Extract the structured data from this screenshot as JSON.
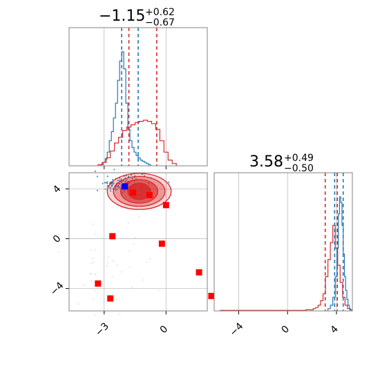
{
  "colors": {
    "posterior_a": "#1f77b4",
    "posterior_b": "#d62728",
    "marker_blue": "#0000ff",
    "marker_red": "#ff0000",
    "grid": "#b0b0b0",
    "axes": "#808080"
  },
  "chart_data": {
    "type": "corner",
    "grid": true,
    "parameters": [
      {
        "title_main": "−1.15",
        "title_sup": "+0.62",
        "title_sub": "−0.67"
      },
      {
        "title_main": "3.58",
        "title_sup": "+0.49",
        "title_sub": "−0.50"
      }
    ],
    "panels": {
      "hist_p0": {
        "type": "histogram",
        "xlim": [
          -4.7,
          2.0
        ],
        "xticks": [
          -3,
          0
        ],
        "show_tick_labels": false,
        "series": [
          {
            "name": "posterior_a",
            "color": "#1f77b4",
            "bin_centers": [
              -3.1,
              -3.0,
              -2.9,
              -2.8,
              -2.7,
              -2.6,
              -2.5,
              -2.4,
              -2.3,
              -2.2,
              -2.1,
              -2.0,
              -1.9,
              -1.8,
              -1.7,
              -1.6,
              -1.5,
              -1.4,
              -1.3,
              -1.2,
              -1.1,
              -1.0,
              -0.9,
              -0.8
            ],
            "counts": [
              0.01,
              0.03,
              0.06,
              0.12,
              0.22,
              0.3,
              0.42,
              0.55,
              0.75,
              0.92,
              1.0,
              0.85,
              0.55,
              0.32,
              0.22,
              0.16,
              0.12,
              0.09,
              0.07,
              0.05,
              0.04,
              0.03,
              0.02,
              0.01
            ],
            "quantiles": [
              -2.15,
              -1.35
            ]
          },
          {
            "name": "posterior_b",
            "color": "#d62728",
            "bin_centers": [
              -3.2,
              -3.0,
              -2.8,
              -2.6,
              -2.4,
              -2.2,
              -2.0,
              -1.8,
              -1.6,
              -1.4,
              -1.2,
              -1.0,
              -0.8,
              -0.6,
              -0.4,
              -0.2,
              0.0,
              0.2,
              0.4
            ],
            "counts": [
              0.01,
              0.03,
              0.07,
              0.13,
              0.2,
              0.25,
              0.31,
              0.34,
              0.36,
              0.38,
              0.39,
              0.4,
              0.39,
              0.37,
              0.32,
              0.22,
              0.12,
              0.05,
              0.02
            ],
            "quantiles": [
              -1.8,
              -0.45
            ]
          }
        ]
      },
      "hist_p1": {
        "type": "histogram",
        "xlim": [
          -6.0,
          5.3
        ],
        "xticks": [
          -4,
          0,
          4
        ],
        "xtick_labels": [
          "−4",
          "0",
          "4"
        ],
        "series": [
          {
            "name": "posterior_b",
            "color": "#d62728",
            "bin_centers": [
              -5.0,
              -4.0,
              -3.0,
              -2.0,
              -1.0,
              0.0,
              1.0,
              2.0,
              2.2,
              2.4,
              2.6,
              2.8,
              3.0,
              3.2,
              3.4,
              3.6,
              3.8,
              4.0,
              4.2,
              4.4,
              4.6,
              4.8,
              5.0
            ],
            "counts": [
              0.005,
              0.005,
              0.005,
              0.005,
              0.005,
              0.005,
              0.005,
              0.01,
              0.02,
              0.03,
              0.05,
              0.09,
              0.15,
              0.3,
              0.45,
              0.6,
              0.75,
              0.55,
              0.4,
              0.25,
              0.12,
              0.05,
              0.02
            ],
            "quantiles": [
              3.08,
              4.07
            ]
          },
          {
            "name": "posterior_a",
            "color": "#1f77b4",
            "bin_centers": [
              3.4,
              3.6,
              3.8,
              4.0,
              4.1,
              4.2,
              4.3,
              4.4,
              4.5,
              4.6,
              4.7,
              4.8,
              4.9,
              5.0,
              5.1,
              5.2
            ],
            "counts": [
              0.02,
              0.05,
              0.12,
              0.3,
              0.55,
              0.85,
              1.0,
              0.95,
              0.75,
              0.5,
              0.3,
              0.18,
              0.1,
              0.05,
              0.02,
              0.01
            ],
            "quantiles": [
              3.85,
              4.55
            ]
          }
        ]
      },
      "joint": {
        "type": "scatter",
        "xlim": [
          -4.7,
          2.0
        ],
        "ylim": [
          -5.8,
          5.3
        ],
        "xticks": [
          -3,
          0
        ],
        "xtick_labels": [
          "−3",
          "0"
        ],
        "yticks": [
          -4,
          0,
          4
        ],
        "ytick_labels": [
          "−4",
          "0",
          "4"
        ],
        "contours": {
          "color": "#d62728",
          "center": [
            -1.3,
            3.8
          ],
          "levels": [
            {
              "rx": 0.55,
              "ry": 0.65
            },
            {
              "rx": 0.9,
              "ry": 0.95
            },
            {
              "rx": 1.25,
              "ry": 1.2
            },
            {
              "rx": 1.55,
              "ry": 1.45
            }
          ]
        },
        "blue_cloud": {
          "center": [
            -2.2,
            4.4
          ],
          "spread": [
            0.6,
            0.35
          ]
        },
        "markers_blue": [
          {
            "x": -2.0,
            "y": 4.2
          }
        ],
        "markers_red": [
          {
            "x": -1.6,
            "y": 3.7
          },
          {
            "x": -0.8,
            "y": 3.5
          },
          {
            "x": 0.0,
            "y": 2.7
          },
          {
            "x": -2.6,
            "y": 0.2
          },
          {
            "x": -0.2,
            "y": -0.4
          },
          {
            "x": 1.6,
            "y": -2.7
          },
          {
            "x": 2.2,
            "y": -4.6
          },
          {
            "x": -3.3,
            "y": -3.6
          },
          {
            "x": -2.7,
            "y": -4.8
          }
        ]
      }
    }
  }
}
